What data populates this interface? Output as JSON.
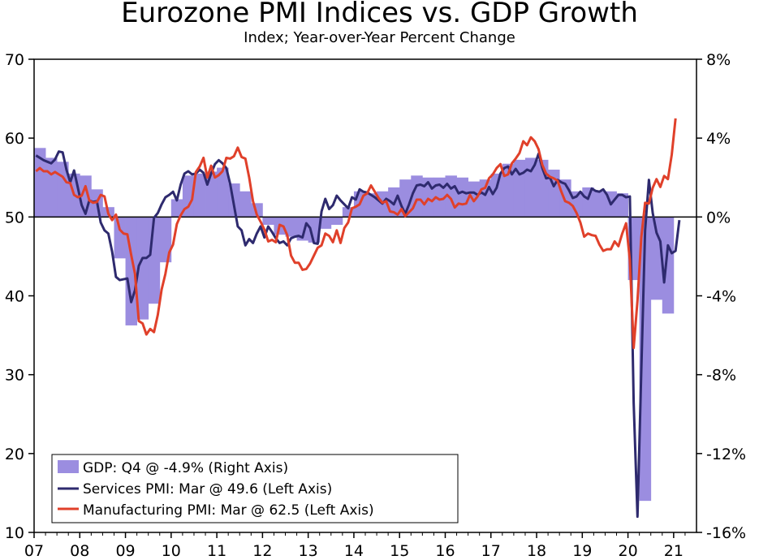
{
  "chart_data": {
    "type": "bar+line",
    "title": "Eurozone PMI Indices vs. GDP Growth",
    "subtitle": "Index; Year-over-Year Percent Change",
    "left_axis": {
      "ylim": [
        10,
        70
      ],
      "ticks": [
        10,
        20,
        30,
        40,
        50,
        60,
        70
      ],
      "tick_labels": [
        "10",
        "20",
        "30",
        "40",
        "50",
        "60",
        "70"
      ]
    },
    "right_axis": {
      "ylim": [
        -16,
        8
      ],
      "ticks": [
        -16,
        -12,
        -8,
        -4,
        0,
        4,
        8
      ],
      "tick_labels": [
        "-16%",
        "-12%",
        "-8%",
        "-4%",
        "0%",
        "4%",
        "8%"
      ]
    },
    "x_axis": {
      "range": [
        2007.0,
        2021.5
      ],
      "tick_labels": [
        "07",
        "08",
        "09",
        "10",
        "11",
        "12",
        "13",
        "14",
        "15",
        "16",
        "17",
        "18",
        "19",
        "20",
        "21"
      ]
    },
    "legend": {
      "position": "bottom-left",
      "entries": [
        "GDP: Q4 @ -4.9% (Right Axis)",
        "Services PMI: Mar @ 49.6 (Left Axis)",
        "Manufacturing PMI: Mar @ 62.5 (Left Axis)"
      ]
    },
    "colors": {
      "gdp": "#9b8de0",
      "services": "#2e2a6e",
      "manufacturing": "#e0402a",
      "axis": "#000000"
    },
    "gdp": {
      "name": "GDP (Right Axis, YoY %)",
      "quarters": [
        "2007Q1",
        "2007Q2",
        "2007Q3",
        "2007Q4",
        "2008Q1",
        "2008Q2",
        "2008Q3",
        "2008Q4",
        "2009Q1",
        "2009Q2",
        "2009Q3",
        "2009Q4",
        "2010Q1",
        "2010Q2",
        "2010Q3",
        "2010Q4",
        "2011Q1",
        "2011Q2",
        "2011Q3",
        "2011Q4",
        "2012Q1",
        "2012Q2",
        "2012Q3",
        "2012Q4",
        "2013Q1",
        "2013Q2",
        "2013Q3",
        "2013Q4",
        "2014Q1",
        "2014Q2",
        "2014Q3",
        "2014Q4",
        "2015Q1",
        "2015Q2",
        "2015Q3",
        "2015Q4",
        "2016Q1",
        "2016Q2",
        "2016Q3",
        "2016Q4",
        "2017Q1",
        "2017Q2",
        "2017Q3",
        "2017Q4",
        "2018Q1",
        "2018Q2",
        "2018Q3",
        "2018Q4",
        "2019Q1",
        "2019Q2",
        "2019Q3",
        "2019Q4",
        "2020Q1",
        "2020Q2",
        "2020Q3",
        "2020Q4"
      ],
      "values": [
        3.5,
        3.0,
        2.8,
        2.2,
        2.1,
        1.4,
        0.5,
        -2.1,
        -5.5,
        -5.2,
        -4.4,
        -2.3,
        0.9,
        2.1,
        2.2,
        2.3,
        2.5,
        1.7,
        1.3,
        0.7,
        -0.4,
        -0.9,
        -1.0,
        -1.2,
        -1.3,
        -0.6,
        -0.4,
        0.5,
        1.3,
        1.2,
        1.3,
        1.5,
        1.9,
        2.1,
        2.0,
        2.0,
        2.1,
        2.0,
        1.8,
        1.9,
        2.2,
        2.7,
        2.9,
        3.0,
        2.9,
        2.4,
        1.9,
        1.3,
        1.5,
        1.3,
        1.3,
        1.2,
        -3.2,
        -14.4,
        -4.2,
        -4.9
      ]
    },
    "services_pmi": {
      "name": "Services PMI (Left Axis)",
      "values": [
        57.8,
        57.5,
        57.2,
        57.0,
        56.8,
        57.3,
        58.3,
        58.2,
        56.0,
        54.4,
        55.9,
        53.7,
        51.5,
        50.4,
        52.1,
        51.9,
        52.0,
        49.3,
        48.3,
        47.9,
        45.6,
        42.4,
        42.0,
        42.1,
        42.2,
        39.2,
        40.7,
        43.8,
        44.8,
        44.8,
        45.2,
        49.9,
        50.5,
        51.6,
        52.5,
        52.8,
        53.2,
        52.1,
        54.1,
        55.5,
        55.8,
        55.4,
        55.5,
        56.0,
        55.6,
        54.1,
        55.5,
        56.7,
        57.2,
        56.8,
        56.2,
        54.2,
        51.5,
        48.8,
        48.3,
        46.4,
        47.2,
        46.7,
        47.9,
        48.8,
        47.4,
        48.8,
        48.1,
        47.3,
        46.7,
        46.9,
        46.4,
        47.3,
        47.5,
        47.6,
        47.4,
        49.2,
        48.6,
        46.7,
        46.6,
        50.7,
        52.3,
        51.0,
        51.5,
        52.7,
        52.1,
        51.6,
        51.1,
        52.5,
        52.2,
        53.5,
        53.2,
        53.1,
        52.8,
        52.5,
        52.1,
        51.7,
        52.3,
        52.0,
        51.6,
        52.7,
        51.4,
        50.4,
        51.6,
        53.0,
        54.0,
        54.1,
        53.9,
        54.4,
        53.6,
        54.0,
        54.1,
        53.7,
        54.2,
        53.6,
        53.9,
        53.0,
        53.2,
        53.0,
        53.1,
        53.1,
        52.8,
        53.1,
        52.8,
        53.8,
        52.9,
        53.7,
        55.5,
        56.2,
        56.4,
        55.4,
        56.1,
        55.4,
        55.6,
        56.0,
        55.8,
        56.6,
        58.0,
        56.2,
        54.9,
        55.0,
        53.9,
        54.7,
        54.4,
        54.2,
        53.4,
        52.4,
        52.6,
        53.2,
        52.6,
        52.3,
        53.6,
        53.3,
        53.2,
        53.5,
        52.8,
        51.6,
        52.2,
        52.8,
        52.8,
        52.5,
        52.6,
        26.4,
        12.0,
        30.5,
        48.3,
        54.7,
        50.5,
        48.0,
        46.9,
        41.7,
        46.4,
        45.4,
        45.7,
        49.6
      ]
    },
    "manufacturing_pmi": {
      "name": "Manufacturing PMI (Left Axis)",
      "values": [
        55.8,
        56.2,
        55.8,
        55.8,
        55.4,
        55.7,
        55.4,
        55.1,
        54.4,
        54.3,
        52.8,
        52.5,
        52.7,
        53.9,
        52.1,
        51.8,
        51.9,
        52.8,
        52.6,
        50.4,
        49.6,
        50.3,
        48.4,
        47.9,
        47.8,
        45.2,
        42.8,
        36.8,
        36.5,
        35.1,
        35.8,
        35.4,
        37.6,
        40.8,
        42.8,
        45.5,
        46.5,
        49.1,
        50.2,
        51.0,
        51.3,
        52.2,
        55.7,
        56.4,
        57.5,
        55.0,
        56.5,
        55.0,
        55.3,
        55.8,
        57.5,
        57.4,
        57.7,
        58.8,
        57.6,
        57.4,
        55.0,
        52.0,
        50.3,
        49.4,
        48.4,
        46.9,
        47.1,
        46.8,
        49.0,
        48.8,
        47.7,
        45.1,
        44.2,
        44.2,
        43.3,
        43.4,
        44.1,
        45.1,
        46.1,
        46.4,
        47.9,
        47.6,
        46.8,
        48.3,
        46.7,
        48.6,
        49.3,
        51.1,
        51.3,
        51.6,
        52.7,
        53.0,
        54.0,
        53.2,
        52.4,
        51.8,
        52.0,
        50.7,
        50.6,
        50.3,
        51.0,
        50.1,
        50.6,
        51.1,
        52.2,
        52.2,
        51.6,
        52.3,
        52.0,
        52.5,
        52.2,
        52.3,
        52.8,
        52.3,
        51.2,
        51.7,
        51.6,
        51.7,
        52.8,
        52.0,
        52.6,
        53.5,
        53.7,
        54.9,
        55.4,
        56.2,
        56.7,
        55.2,
        55.4,
        56.8,
        57.4,
        58.1,
        59.6,
        59.1,
        60.1,
        59.6,
        58.6,
        56.6,
        55.5,
        55.1,
        54.9,
        54.6,
        53.2,
        52.0,
        51.8,
        51.4,
        50.5,
        49.3,
        47.5,
        47.9,
        47.7,
        47.6,
        46.5,
        45.7,
        45.9,
        45.9,
        46.9,
        46.3,
        47.9,
        49.2,
        44.5,
        33.4,
        39.4,
        47.4,
        51.8,
        51.7,
        53.7,
        54.8,
        53.8,
        55.2,
        54.8,
        57.9,
        62.5
      ]
    }
  }
}
